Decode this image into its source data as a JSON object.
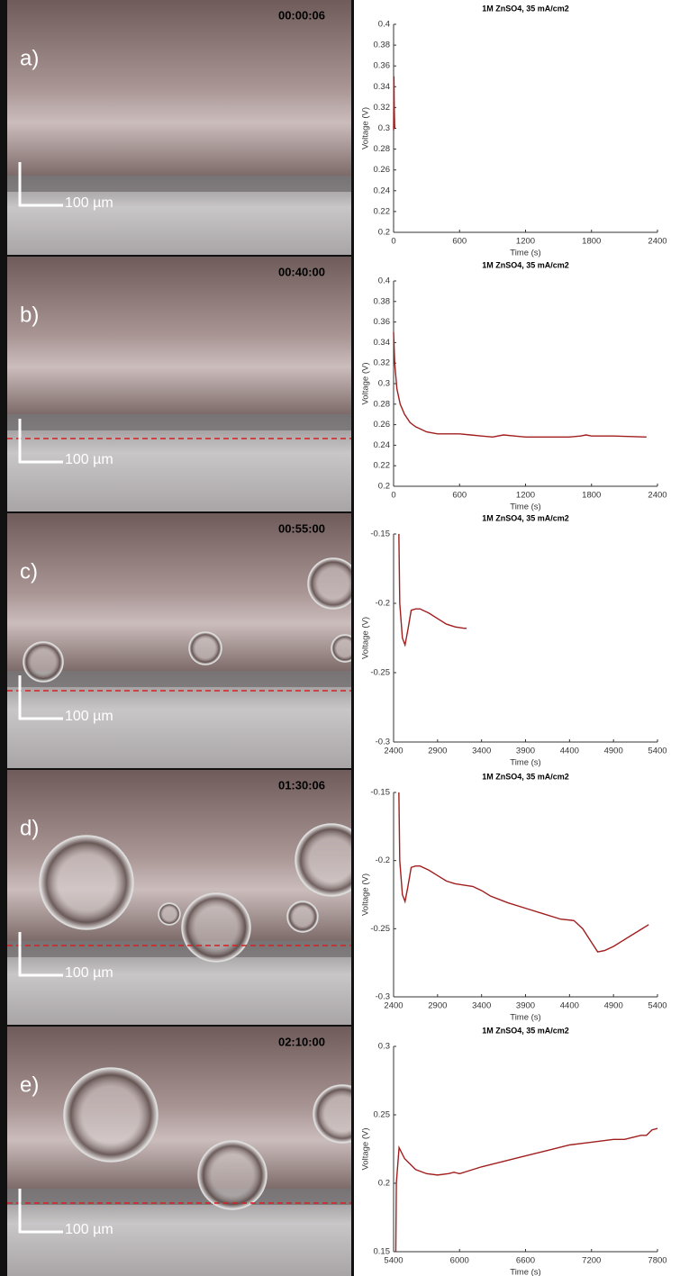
{
  "images": [
    {
      "label": "a)",
      "timestamp": "00:00:06",
      "scale_bar": "100 µm"
    },
    {
      "label": "b)",
      "timestamp": "00:40:00",
      "scale_bar": "100 µm"
    },
    {
      "label": "c)",
      "timestamp": "00:55:00",
      "scale_bar": "100 µm"
    },
    {
      "label": "d)",
      "timestamp": "01:30:06",
      "scale_bar": "100 µm"
    },
    {
      "label": "e)",
      "timestamp": "02:10:00",
      "scale_bar": "100 µm"
    }
  ],
  "chart_data": [
    {
      "type": "line",
      "title": "1M ZnSO4, 35 mA/cm2",
      "xlabel": "Time (s)",
      "ylabel": "Voltage (V)",
      "color": "#a01e1e",
      "x": [
        0,
        3,
        6,
        10
      ],
      "values": [
        0.298,
        0.35,
        0.32,
        0.3
      ],
      "xlim": [
        0,
        2400
      ],
      "xticks": [
        0,
        600,
        1200,
        1800,
        2400
      ],
      "ylim": [
        0.2,
        0.4
      ],
      "yticks": [
        0.2,
        0.22,
        0.24,
        0.26,
        0.28,
        0.3,
        0.32,
        0.34,
        0.36,
        0.38,
        0.4
      ]
    },
    {
      "type": "line",
      "title": "1M ZnSO4, 35 mA/cm2",
      "xlabel": "Time (s)",
      "ylabel": "Voltage (V)",
      "color": "#a01e1e",
      "x": [
        0,
        10,
        30,
        60,
        100,
        150,
        200,
        300,
        400,
        500,
        600,
        700,
        800,
        900,
        1000,
        1100,
        1200,
        1400,
        1600,
        1700,
        1750,
        1800,
        2000,
        2300
      ],
      "values": [
        0.35,
        0.32,
        0.295,
        0.28,
        0.27,
        0.262,
        0.258,
        0.253,
        0.251,
        0.251,
        0.251,
        0.25,
        0.249,
        0.248,
        0.25,
        0.249,
        0.248,
        0.248,
        0.248,
        0.249,
        0.25,
        0.249,
        0.249,
        0.248
      ],
      "xlim": [
        0,
        2400
      ],
      "xticks": [
        0,
        600,
        1200,
        1800,
        2400
      ],
      "ylim": [
        0.2,
        0.4
      ],
      "yticks": [
        0.2,
        0.22,
        0.24,
        0.26,
        0.28,
        0.3,
        0.32,
        0.34,
        0.36,
        0.38,
        0.4
      ]
    },
    {
      "type": "line",
      "title": "1M ZnSO4, 35 mA/cm2",
      "xlabel": "Time (s)",
      "ylabel": "Voltage (V)",
      "color": "#a01e1e",
      "x": [
        2460,
        2470,
        2500,
        2530,
        2560,
        2600,
        2650,
        2700,
        2800,
        2900,
        3000,
        3100,
        3200,
        3230
      ],
      "values": [
        -0.15,
        -0.2,
        -0.225,
        -0.23,
        -0.22,
        -0.205,
        -0.204,
        -0.204,
        -0.207,
        -0.211,
        -0.215,
        -0.217,
        -0.218,
        -0.218
      ],
      "xlim": [
        2400,
        5400
      ],
      "xticks": [
        2400,
        2900,
        3400,
        3900,
        4400,
        4900,
        5400
      ],
      "ylim": [
        -0.3,
        -0.15
      ],
      "yticks": [
        -0.3,
        -0.25,
        -0.2,
        -0.15
      ]
    },
    {
      "type": "line",
      "title": "1M ZnSO4, 35 mA/cm2",
      "xlabel": "Time (s)",
      "ylabel": "Voltage (V)",
      "color": "#a01e1e",
      "x": [
        2460,
        2470,
        2500,
        2530,
        2560,
        2600,
        2650,
        2700,
        2800,
        2900,
        3000,
        3100,
        3200,
        3300,
        3400,
        3500,
        3700,
        3900,
        4100,
        4300,
        4450,
        4550,
        4650,
        4720,
        4800,
        4900,
        5000,
        5100,
        5200,
        5300
      ],
      "values": [
        -0.15,
        -0.2,
        -0.225,
        -0.23,
        -0.22,
        -0.205,
        -0.204,
        -0.204,
        -0.207,
        -0.211,
        -0.215,
        -0.217,
        -0.218,
        -0.219,
        -0.222,
        -0.226,
        -0.231,
        -0.235,
        -0.239,
        -0.243,
        -0.244,
        -0.25,
        -0.26,
        -0.267,
        -0.266,
        -0.263,
        -0.259,
        -0.255,
        -0.251,
        -0.247
      ],
      "xlim": [
        2400,
        5400
      ],
      "xticks": [
        2400,
        2900,
        3400,
        3900,
        4400,
        4900,
        5400
      ],
      "ylim": [
        -0.3,
        -0.15
      ],
      "yticks": [
        -0.3,
        -0.25,
        -0.2,
        -0.15
      ]
    },
    {
      "type": "line",
      "title": "1M ZnSO4, 35 mA/cm2",
      "xlabel": "Time (s)",
      "ylabel": "Voltage (V)",
      "color": "#a01e1e",
      "x": [
        5420,
        5425,
        5450,
        5500,
        5600,
        5700,
        5800,
        5900,
        5950,
        6000,
        6200,
        6400,
        6600,
        6800,
        7000,
        7200,
        7400,
        7500,
        7650,
        7700,
        7750,
        7800
      ],
      "values": [
        0.15,
        0.2,
        0.226,
        0.218,
        0.21,
        0.207,
        0.206,
        0.207,
        0.208,
        0.207,
        0.212,
        0.216,
        0.22,
        0.224,
        0.228,
        0.23,
        0.232,
        0.232,
        0.235,
        0.235,
        0.239,
        0.24
      ],
      "xlim": [
        5400,
        7800
      ],
      "xticks": [
        5400,
        6000,
        6600,
        7200,
        7800
      ],
      "ylim": [
        0.15,
        0.3
      ],
      "yticks": [
        0.15,
        0.2,
        0.25,
        0.3
      ]
    }
  ]
}
